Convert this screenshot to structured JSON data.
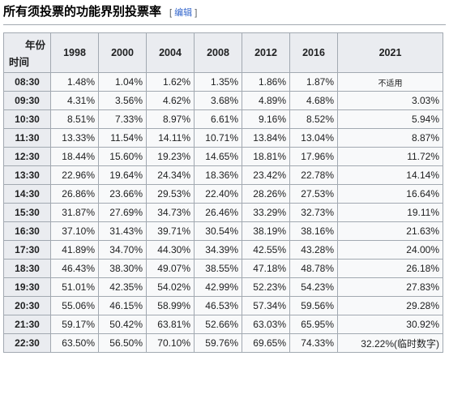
{
  "heading": {
    "title": "所有须投票的功能界别投票率",
    "edit_open": "[",
    "edit_label": "编辑",
    "edit_close": "]"
  },
  "table": {
    "corner_top": "年份",
    "corner_bottom": "时间",
    "years": [
      "1998",
      "2000",
      "2004",
      "2008",
      "2012",
      "2016",
      "2021"
    ],
    "rows": [
      {
        "time": "08:30",
        "values": [
          "1.48%",
          "1.04%",
          "1.62%",
          "1.35%",
          "1.86%",
          "1.87%",
          "不适用"
        ]
      },
      {
        "time": "09:30",
        "values": [
          "4.31%",
          "3.56%",
          "4.62%",
          "3.68%",
          "4.89%",
          "4.68%",
          "3.03%"
        ]
      },
      {
        "time": "10:30",
        "values": [
          "8.51%",
          "7.33%",
          "8.97%",
          "6.61%",
          "9.16%",
          "8.52%",
          "5.94%"
        ]
      },
      {
        "time": "11:30",
        "values": [
          "13.33%",
          "11.54%",
          "14.11%",
          "10.71%",
          "13.84%",
          "13.04%",
          "8.87%"
        ]
      },
      {
        "time": "12:30",
        "values": [
          "18.44%",
          "15.60%",
          "19.23%",
          "14.65%",
          "18.81%",
          "17.96%",
          "11.72%"
        ]
      },
      {
        "time": "13:30",
        "values": [
          "22.96%",
          "19.64%",
          "24.34%",
          "18.36%",
          "23.42%",
          "22.78%",
          "14.14%"
        ]
      },
      {
        "time": "14:30",
        "values": [
          "26.86%",
          "23.66%",
          "29.53%",
          "22.40%",
          "28.26%",
          "27.53%",
          "16.64%"
        ]
      },
      {
        "time": "15:30",
        "values": [
          "31.87%",
          "27.69%",
          "34.73%",
          "26.46%",
          "33.29%",
          "32.73%",
          "19.11%"
        ]
      },
      {
        "time": "16:30",
        "values": [
          "37.10%",
          "31.43%",
          "39.71%",
          "30.54%",
          "38.19%",
          "38.16%",
          "21.63%"
        ]
      },
      {
        "time": "17:30",
        "values": [
          "41.89%",
          "34.70%",
          "44.30%",
          "34.39%",
          "42.55%",
          "43.28%",
          "24.00%"
        ]
      },
      {
        "time": "18:30",
        "values": [
          "46.43%",
          "38.30%",
          "49.07%",
          "38.55%",
          "47.18%",
          "48.78%",
          "26.18%"
        ]
      },
      {
        "time": "19:30",
        "values": [
          "51.01%",
          "42.35%",
          "54.02%",
          "42.99%",
          "52.23%",
          "54.23%",
          "27.83%"
        ]
      },
      {
        "time": "20:30",
        "values": [
          "55.06%",
          "46.15%",
          "58.99%",
          "46.53%",
          "57.34%",
          "59.56%",
          "29.28%"
        ]
      },
      {
        "time": "21:30",
        "values": [
          "59.17%",
          "50.42%",
          "63.81%",
          "52.66%",
          "63.03%",
          "65.95%",
          "30.92%"
        ]
      },
      {
        "time": "22:30",
        "values": [
          "63.50%",
          "56.50%",
          "70.10%",
          "59.76%",
          "69.65%",
          "74.33%",
          "32.22%(临时数字)"
        ]
      }
    ]
  }
}
